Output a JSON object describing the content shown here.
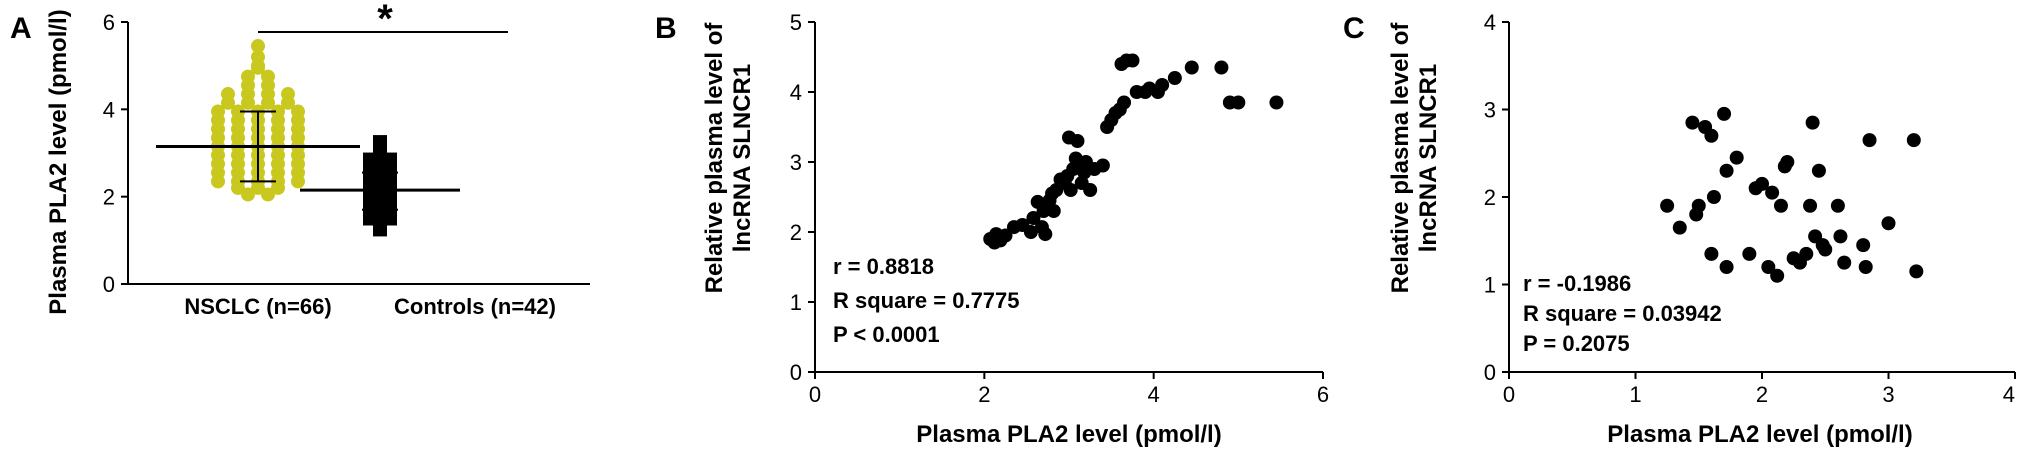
{
  "chart_data": [
    {
      "panel": "A",
      "type": "scatter",
      "ylabel": "Plasma PLA2 level (pmol/l)",
      "ylim": [
        0,
        6
      ],
      "yticks": [
        0,
        2,
        4,
        6
      ],
      "categories": [
        "NSCLC (n=66)",
        "Controls (n=42)"
      ],
      "significance": "*",
      "colors": {
        "NSCLC (n=66)": "#c8c81e",
        "Controls (n=42)": "#000000"
      },
      "series": [
        {
          "category": "NSCLC (n=66)",
          "mean": 3.15,
          "sd_low": 2.35,
          "sd_high": 3.95,
          "values": [
            5.45,
            5.2,
            5.0,
            4.95,
            4.75,
            4.75,
            4.55,
            4.55,
            4.35,
            4.35,
            4.35,
            4.35,
            4.15,
            4.15,
            4.15,
            4.15,
            3.95,
            3.95,
            3.95,
            3.95,
            3.95,
            3.75,
            3.75,
            3.75,
            3.75,
            3.75,
            3.55,
            3.55,
            3.55,
            3.55,
            3.55,
            3.35,
            3.35,
            3.35,
            3.35,
            3.35,
            3.15,
            3.15,
            3.15,
            3.15,
            3.15,
            2.95,
            2.95,
            2.95,
            2.95,
            2.95,
            2.75,
            2.75,
            2.75,
            2.75,
            2.75,
            2.55,
            2.55,
            2.55,
            2.55,
            2.55,
            2.35,
            2.35,
            2.35,
            2.35,
            2.35,
            2.2,
            2.2,
            2.2,
            2.05,
            2.05
          ]
        },
        {
          "category": "Controls (n=42)",
          "mean": 2.15,
          "sd_low": 1.7,
          "sd_high": 2.55,
          "values": [
            3.25,
            3.2,
            3.05,
            3.0,
            2.85,
            2.85,
            2.8,
            2.7,
            2.65,
            2.65,
            2.6,
            2.5,
            2.45,
            2.45,
            2.4,
            2.35,
            2.3,
            2.25,
            2.2,
            2.2,
            2.15,
            2.1,
            2.05,
            2.05,
            2.0,
            1.95,
            1.9,
            1.85,
            1.8,
            1.75,
            1.75,
            1.7,
            1.65,
            1.6,
            1.55,
            1.5,
            1.5,
            1.45,
            1.4,
            1.35,
            1.3,
            1.25
          ]
        }
      ]
    },
    {
      "panel": "B",
      "type": "scatter",
      "xlabel": "Plasma PLA2 level (pmol/l)",
      "ylabel": "Relative plasma level of lncRNA SLNCR1",
      "xlim": [
        0,
        6
      ],
      "ylim": [
        0,
        5
      ],
      "xticks": [
        0,
        2,
        4,
        6
      ],
      "yticks": [
        0,
        1,
        2,
        3,
        4,
        5
      ],
      "stats": [
        "r = 0.8818",
        "R square = 0.7775",
        "P < 0.0001"
      ],
      "points": [
        [
          2.07,
          1.9
        ],
        [
          2.12,
          1.85
        ],
        [
          2.14,
          1.97
        ],
        [
          2.19,
          1.88
        ],
        [
          2.25,
          1.95
        ],
        [
          2.35,
          2.07
        ],
        [
          2.45,
          2.1
        ],
        [
          2.55,
          2.0
        ],
        [
          2.58,
          2.2
        ],
        [
          2.63,
          2.43
        ],
        [
          2.68,
          2.07
        ],
        [
          2.7,
          2.3
        ],
        [
          2.72,
          1.97
        ],
        [
          2.77,
          2.45
        ],
        [
          2.8,
          2.55
        ],
        [
          2.82,
          2.3
        ],
        [
          2.85,
          2.6
        ],
        [
          2.9,
          2.75
        ],
        [
          2.95,
          2.7
        ],
        [
          2.98,
          2.8
        ],
        [
          3.0,
          3.35
        ],
        [
          3.02,
          2.6
        ],
        [
          3.05,
          2.9
        ],
        [
          3.08,
          3.05
        ],
        [
          3.1,
          3.3
        ],
        [
          3.12,
          2.95
        ],
        [
          3.15,
          2.7
        ],
        [
          3.18,
          2.85
        ],
        [
          3.2,
          3.0
        ],
        [
          3.25,
          2.6
        ],
        [
          3.3,
          2.9
        ],
        [
          3.4,
          2.95
        ],
        [
          3.45,
          3.5
        ],
        [
          3.5,
          3.6
        ],
        [
          3.55,
          3.7
        ],
        [
          3.6,
          3.75
        ],
        [
          3.65,
          3.85
        ],
        [
          3.62,
          4.4
        ],
        [
          3.68,
          4.45
        ],
        [
          3.75,
          4.45
        ],
        [
          3.8,
          4.0
        ],
        [
          3.9,
          4.0
        ],
        [
          3.95,
          4.05
        ],
        [
          4.05,
          4.0
        ],
        [
          4.1,
          4.1
        ],
        [
          4.25,
          4.2
        ],
        [
          4.45,
          4.35
        ],
        [
          4.8,
          4.35
        ],
        [
          4.9,
          3.85
        ],
        [
          5.0,
          3.85
        ],
        [
          5.45,
          3.85
        ]
      ]
    },
    {
      "panel": "C",
      "type": "scatter",
      "xlabel": "Plasma PLA2 level (pmol/l)",
      "ylabel": "Relative plasma level of lncRNA SLNCR1",
      "xlim": [
        0,
        4
      ],
      "ylim": [
        0,
        4
      ],
      "xticks": [
        0,
        1,
        2,
        3,
        4
      ],
      "yticks": [
        0,
        1,
        2,
        3,
        4
      ],
      "stats": [
        "r = -0.1986",
        "R square = 0.03942",
        "P = 0.2075"
      ],
      "points": [
        [
          1.25,
          1.9
        ],
        [
          1.35,
          1.65
        ],
        [
          1.45,
          2.85
        ],
        [
          1.48,
          1.8
        ],
        [
          1.5,
          1.9
        ],
        [
          1.55,
          2.8
        ],
        [
          1.6,
          2.7
        ],
        [
          1.62,
          2.0
        ],
        [
          1.6,
          1.35
        ],
        [
          1.7,
          2.95
        ],
        [
          1.72,
          2.3
        ],
        [
          1.72,
          1.2
        ],
        [
          1.8,
          2.45
        ],
        [
          1.9,
          1.35
        ],
        [
          1.95,
          2.1
        ],
        [
          2.0,
          2.15
        ],
        [
          2.05,
          1.2
        ],
        [
          2.08,
          2.05
        ],
        [
          2.12,
          1.1
        ],
        [
          2.15,
          1.9
        ],
        [
          2.18,
          2.35
        ],
        [
          2.2,
          2.4
        ],
        [
          2.25,
          1.3
        ],
        [
          2.3,
          1.25
        ],
        [
          2.35,
          1.35
        ],
        [
          2.38,
          1.9
        ],
        [
          2.4,
          2.85
        ],
        [
          2.42,
          1.55
        ],
        [
          2.45,
          2.3
        ],
        [
          2.48,
          1.45
        ],
        [
          2.5,
          1.4
        ],
        [
          2.6,
          1.9
        ],
        [
          2.62,
          1.55
        ],
        [
          2.65,
          1.25
        ],
        [
          2.8,
          1.45
        ],
        [
          2.82,
          1.2
        ],
        [
          2.85,
          2.65
        ],
        [
          3.0,
          1.7
        ],
        [
          3.2,
          2.65
        ],
        [
          3.22,
          1.15
        ]
      ]
    }
  ],
  "panels": {
    "A": {
      "letter": "A",
      "ylabel": "Plasma PLA2 level (pmol/l)",
      "yticks": [
        "0",
        "2",
        "4",
        "6"
      ],
      "cat1": "NSCLC (n=66)",
      "cat2": "Controls (n=42)",
      "sig": "*"
    },
    "B": {
      "letter": "B",
      "xlabel": "Plasma PLA2 level (pmol/l)",
      "ylabel1": "Relative plasma level of",
      "ylabel2": "lncRNA SLNCR1",
      "xticks": [
        "0",
        "2",
        "4",
        "6"
      ],
      "yticks": [
        "0",
        "1",
        "2",
        "3",
        "4",
        "5"
      ],
      "stat1": "r = 0.8818",
      "stat2": "R square = 0.7775",
      "stat3": "P < 0.0001"
    },
    "C": {
      "letter": "C",
      "xlabel": "Plasma PLA2 level (pmol/l)",
      "ylabel1": "Relative plasma level of",
      "ylabel2": "lncRNA SLNCR1",
      "xticks": [
        "0",
        "1",
        "2",
        "3",
        "4"
      ],
      "yticks": [
        "0",
        "1",
        "2",
        "3",
        "4"
      ],
      "stat1": "r = -0.1986",
      "stat2": "R square = 0.03942",
      "stat3": "P = 0.2075"
    }
  }
}
